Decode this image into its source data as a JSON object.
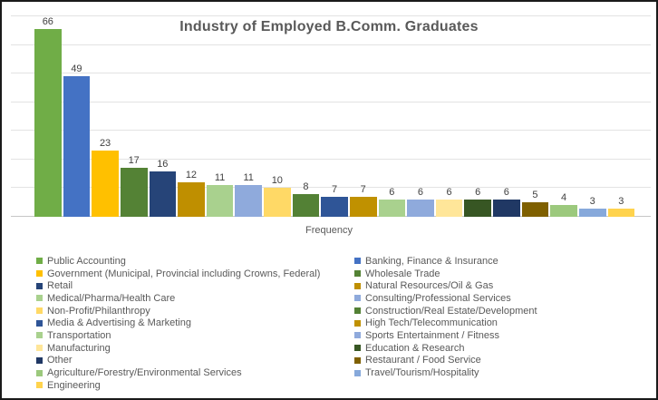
{
  "chart_data": {
    "type": "bar",
    "title": "Industry of Employed B.Comm. Graduates",
    "xlabel": "Frequency",
    "ylabel": "",
    "ylim": [
      0,
      70
    ],
    "gridline_step": 10,
    "grid": true,
    "y_tick_labels_visible": false,
    "legend_position": "bottom",
    "legend_columns": 2,
    "categories": [
      "Public Accounting",
      "Banking, Finance & Insurance",
      "Government (Municipal, Provincial including Crowns, Federal)",
      "Wholesale Trade",
      "Retail",
      "Natural Resources/Oil & Gas",
      "Medical/Pharma/Health Care",
      "Consulting/Professional Services",
      "Non-Profit/Philanthropy",
      "Construction/Real Estate/Development",
      "Media & Advertising & Marketing",
      "High Tech/Telecommunication",
      "Transportation",
      "Sports Entertainment / Fitness",
      "Manufacturing",
      "Education & Research",
      "Other",
      "Restaurant / Food Service",
      "Agriculture/Forestry/Environmental Services",
      "Travel/Tourism/Hospitality",
      "Engineering"
    ],
    "values": [
      66,
      49,
      23,
      17,
      16,
      12,
      11,
      11,
      10,
      8,
      7,
      7,
      6,
      6,
      6,
      6,
      6,
      5,
      4,
      3,
      3
    ],
    "colors": [
      "#70AD47",
      "#4472C4",
      "#FFC000",
      "#548235",
      "#264478",
      "#BF8F00",
      "#A9D18E",
      "#8FAADC",
      "#FFD966",
      "#538135",
      "#2F5597",
      "#C09100",
      "#A9D18E",
      "#8FAADC",
      "#FFE699",
      "#375623",
      "#203864",
      "#7F6000",
      "#9CC97D",
      "#87A9DB",
      "#FFD34D"
    ]
  },
  "styles": {
    "frame_border_color": "#1a1a1a",
    "background_color": "#ffffff",
    "title_color": "#595959",
    "bar_label_color": "#404040",
    "legend_text_color": "#595959",
    "gridline_color": "#e3e3e3",
    "axis_line_color": "#c6c6c6"
  }
}
